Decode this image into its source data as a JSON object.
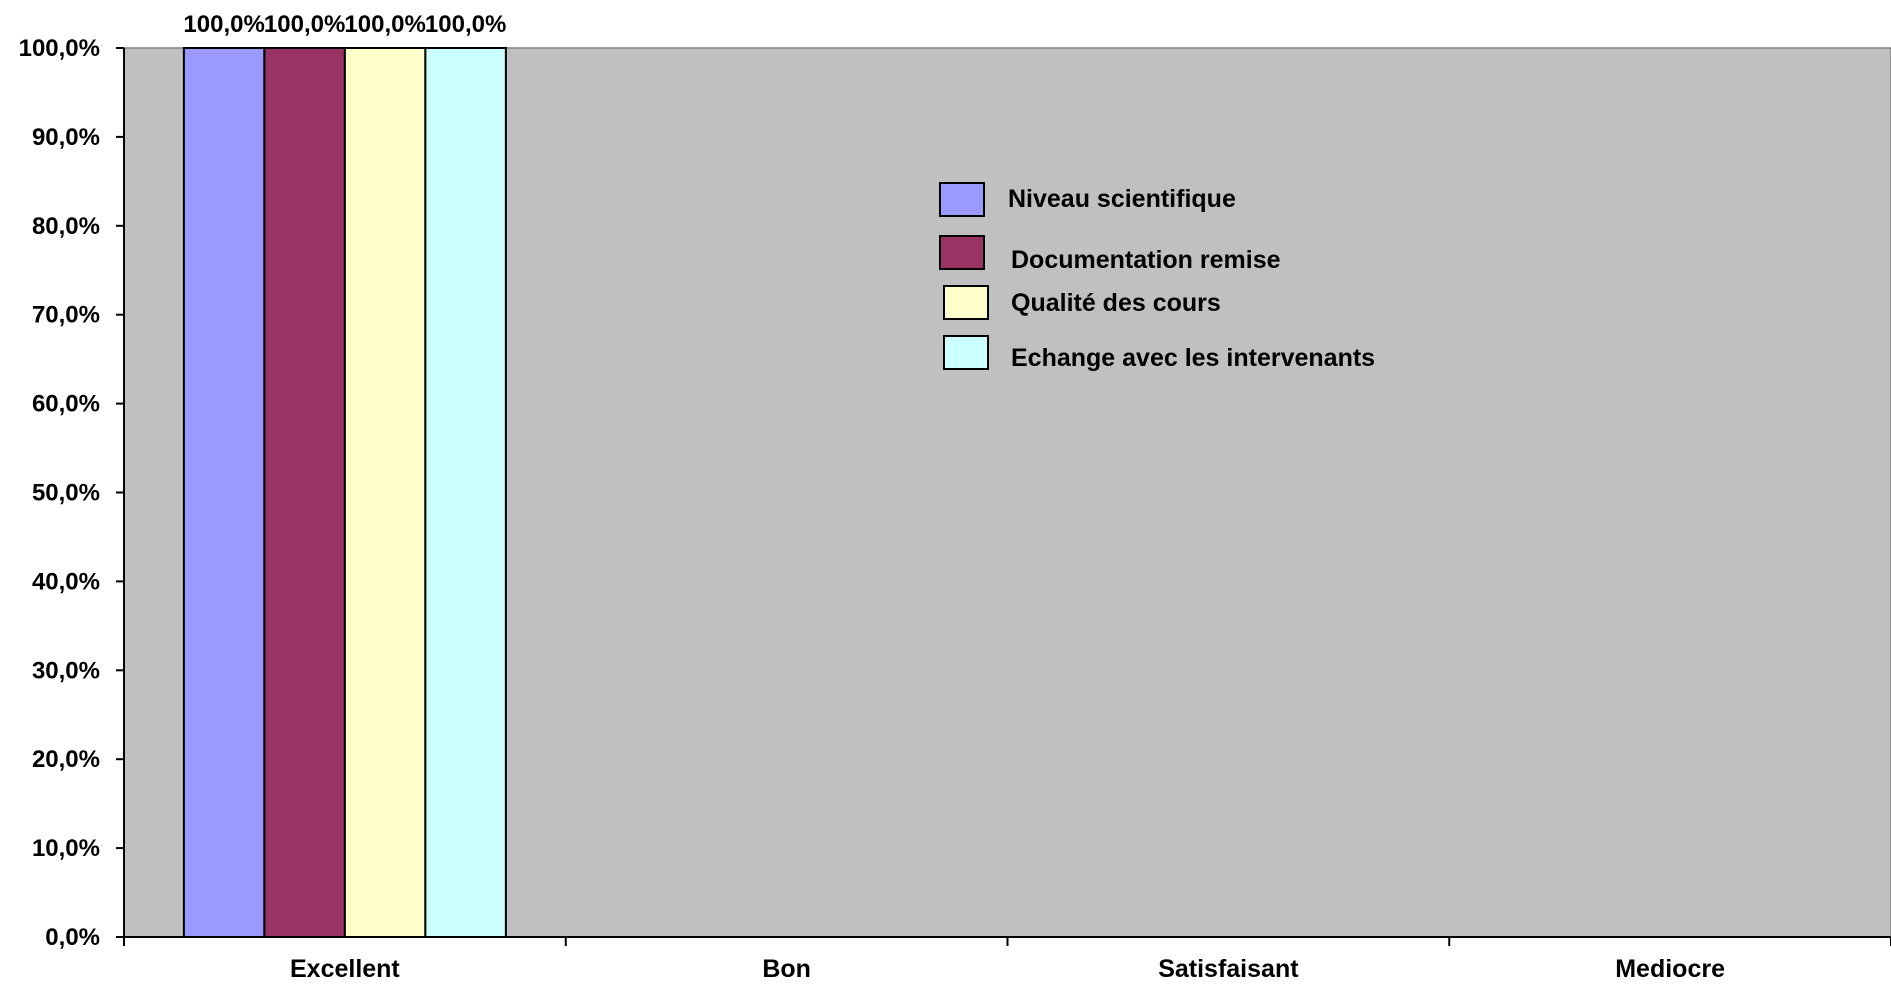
{
  "chart_data": {
    "type": "bar",
    "categories": [
      "Excellent",
      "Bon",
      "Satisfaisant",
      "Mediocre"
    ],
    "series": [
      {
        "name": "Niveau scientifique",
        "values": [
          100.0,
          null,
          null,
          null
        ],
        "color": "#9999ff"
      },
      {
        "name": "Documentation remise",
        "values": [
          100.0,
          null,
          null,
          null
        ],
        "color": "#993366"
      },
      {
        "name": "Qualité des cours",
        "values": [
          100.0,
          null,
          null,
          null
        ],
        "color": "#ffffcc"
      },
      {
        "name": "Echange avec les intervenants",
        "values": [
          100.0,
          null,
          null,
          null
        ],
        "color": "#ccffff"
      }
    ],
    "data_labels": [
      [
        "100,0%",
        "100,0%",
        "100,0%",
        "100,0%"
      ]
    ],
    "ylim": [
      0,
      100
    ],
    "yticks": [
      "0,0%",
      "10,0%",
      "20,0%",
      "30,0%",
      "40,0%",
      "50,0%",
      "60,0%",
      "70,0%",
      "80,0%",
      "90,0%",
      "100,0%"
    ],
    "plot_background": "#c0c0c0",
    "grid": false,
    "legend_position": "top-center",
    "title": "",
    "xlabel": "",
    "ylabel": ""
  }
}
